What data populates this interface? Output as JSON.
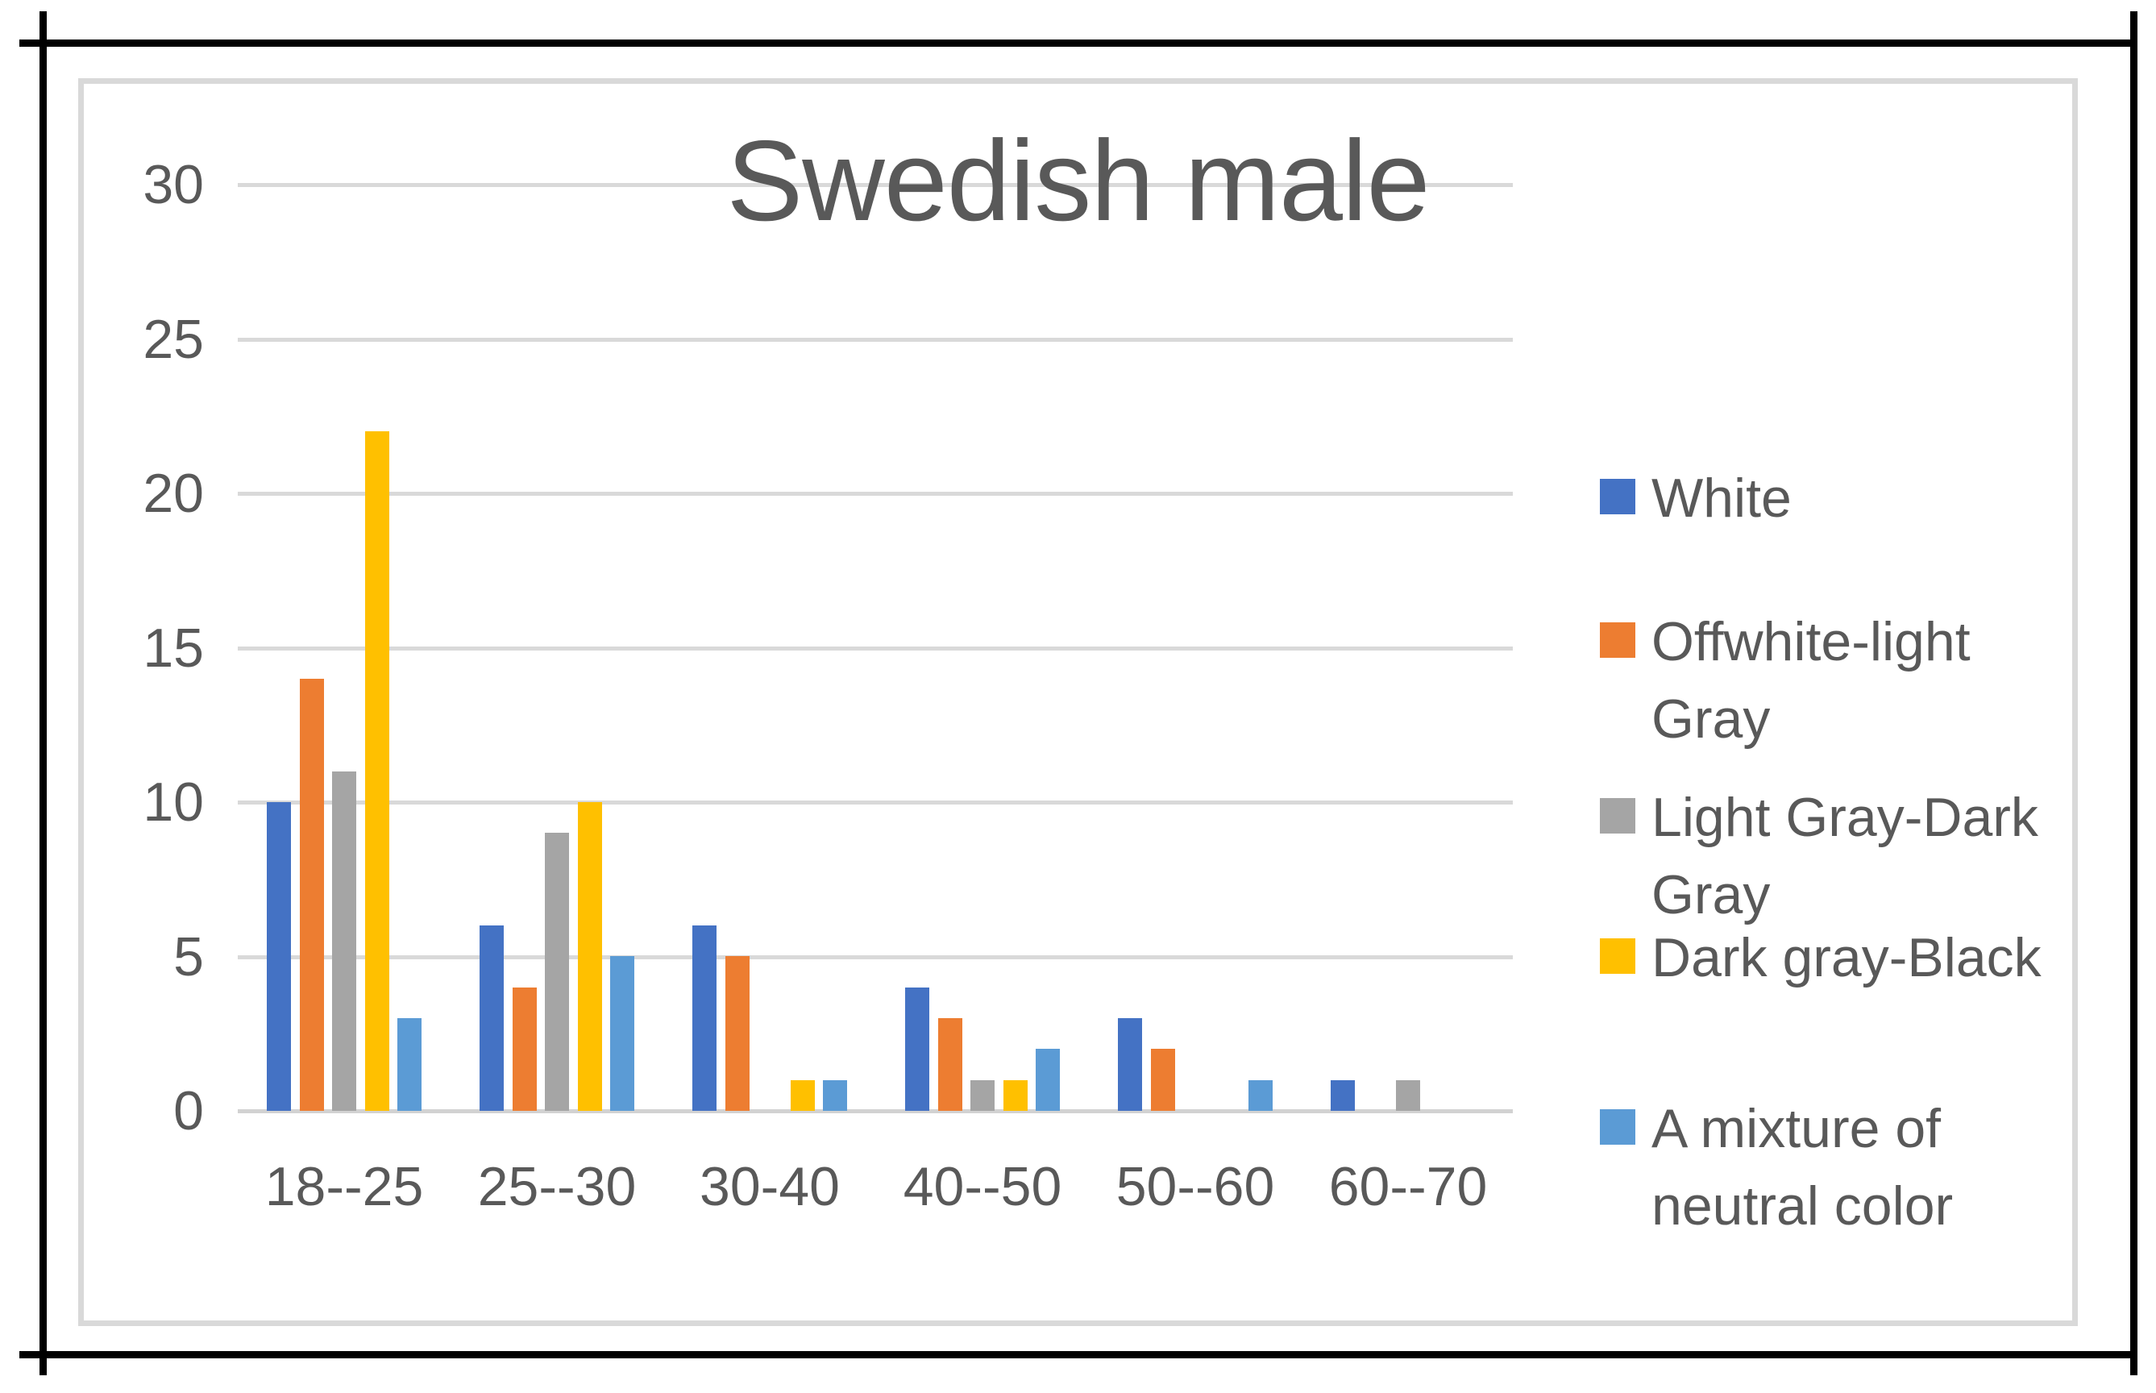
{
  "chart_title": "Swedish male",
  "chart_data": {
    "type": "bar",
    "title": "Swedish male",
    "categories": [
      "18--25",
      "25--30",
      "30-40",
      "40--50",
      "50--60",
      "60--70"
    ],
    "series": [
      {
        "name": "White",
        "color": "#4472C4",
        "values": [
          10,
          6,
          6,
          4,
          3,
          1
        ]
      },
      {
        "name": "Offwhite-light Gray",
        "color": "#ED7D31",
        "values": [
          14,
          4,
          5,
          3,
          2,
          0
        ]
      },
      {
        "name": "Light Gray-Dark Gray",
        "color": "#A5A5A5",
        "values": [
          11,
          9,
          0,
          1,
          0,
          1
        ]
      },
      {
        "name": "Dark gray-Black",
        "color": "#FFC000",
        "values": [
          22,
          10,
          1,
          1,
          0,
          0
        ]
      },
      {
        "name": "A mixture of neutral color",
        "color": "#5B9BD5",
        "values": [
          3,
          5,
          1,
          2,
          1,
          0
        ]
      }
    ],
    "xlabel": "",
    "ylabel": "",
    "ylim": [
      0,
      30
    ],
    "yticks": [
      0,
      5,
      10,
      15,
      20,
      25,
      30
    ],
    "grid": true,
    "legend_position": "right",
    "gridline_color": "#D9D9D9",
    "text_color": "#595959"
  }
}
